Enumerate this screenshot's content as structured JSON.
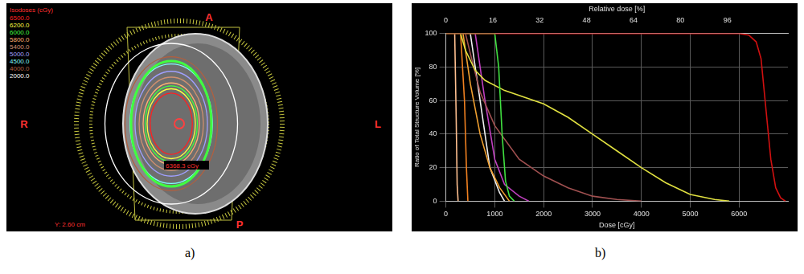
{
  "panel_labels": [
    "a)",
    "b)"
  ],
  "image_panel": {
    "legend_title": "Isodoses (cGy)",
    "isodoses": [
      {
        "value": 6500,
        "label": "6500.0",
        "color": "#ff2020"
      },
      {
        "value": 6200,
        "label": "6200.0",
        "color": "#ffff40"
      },
      {
        "value": 6000,
        "label": "6000.0",
        "color": "#40ff40"
      },
      {
        "value": 5800,
        "label": "5800.0",
        "color": "#ffb070"
      },
      {
        "value": 5400,
        "label": "5400.0",
        "color": "#d09070"
      },
      {
        "value": 5000,
        "label": "5000.0",
        "color": "#a0a0ff"
      },
      {
        "value": 4500,
        "label": "4500.0",
        "color": "#80ffff"
      },
      {
        "value": 4000,
        "label": "4000.0",
        "color": "#b06040"
      },
      {
        "value": 2000,
        "label": "2000.0",
        "color": "#ffffff"
      }
    ],
    "orientation_labels": {
      "top": "A",
      "bottom": "P",
      "left": "R",
      "right": "L"
    },
    "annotation": "6368.3 cGy",
    "position_text": "Y: 2.60 cm"
  },
  "chart_data": {
    "type": "line",
    "x_label": "Dose [cGy]",
    "y_label": "Ratio of Total Structure Volume [%]",
    "x2_label": "Relative dose [%]",
    "xlim": [
      0,
      7000
    ],
    "xticks": [
      0,
      1000,
      2000,
      3000,
      4000,
      5000,
      6000
    ],
    "x2lim": [
      0,
      116.67
    ],
    "x2ticks": [
      0,
      16,
      32,
      48,
      64,
      80,
      96
    ],
    "ylim": [
      0,
      100
    ],
    "yticks": [
      0,
      20,
      40,
      60,
      80,
      100
    ],
    "grid": true,
    "series": [
      {
        "color": "#d01010",
        "x": [
          0,
          6000,
          6200,
          6350,
          6450,
          6550,
          6650,
          6750,
          6850,
          6950
        ],
        "values": [
          100,
          100,
          99,
          95,
          85,
          55,
          25,
          8,
          2,
          0
        ]
      },
      {
        "color": "#40e040",
        "x": [
          0,
          1000,
          1080,
          1150,
          1220,
          1300,
          1400
        ],
        "values": [
          100,
          100,
          80,
          40,
          12,
          3,
          0
        ]
      },
      {
        "color": "#e0e040",
        "x": [
          300,
          400,
          600,
          800,
          1200,
          2000,
          2500,
          3000,
          3500,
          4000,
          4500,
          5000,
          5500,
          5800
        ],
        "values": [
          100,
          90,
          78,
          72,
          66,
          58,
          50,
          40,
          30,
          20,
          11,
          4,
          1,
          0
        ]
      },
      {
        "color": "#a05050",
        "x": [
          400,
          500,
          700,
          1000,
          1500,
          2000,
          2500,
          3000,
          3500,
          4000
        ],
        "values": [
          100,
          88,
          65,
          45,
          25,
          15,
          8,
          3,
          1,
          0
        ]
      },
      {
        "color": "#c040c0",
        "x": [
          600,
          800,
          1000,
          1200,
          1500,
          1700
        ],
        "values": [
          100,
          60,
          25,
          10,
          3,
          0
        ]
      },
      {
        "color": "#f0a030",
        "x": [
          350,
          500,
          700,
          900,
          1100,
          1300
        ],
        "values": [
          100,
          70,
          40,
          20,
          8,
          0
        ]
      },
      {
        "color": "#f08020",
        "x": [
          300,
          380,
          420,
          450
        ],
        "values": [
          100,
          60,
          20,
          0
        ]
      },
      {
        "color": "#f0f0f0",
        "x": [
          500,
          700,
          900,
          1100,
          1200
        ],
        "values": [
          100,
          60,
          20,
          5,
          0
        ]
      },
      {
        "color": "#ffc090",
        "x": [
          180,
          210,
          230,
          250
        ],
        "values": [
          100,
          50,
          10,
          0
        ]
      }
    ]
  }
}
